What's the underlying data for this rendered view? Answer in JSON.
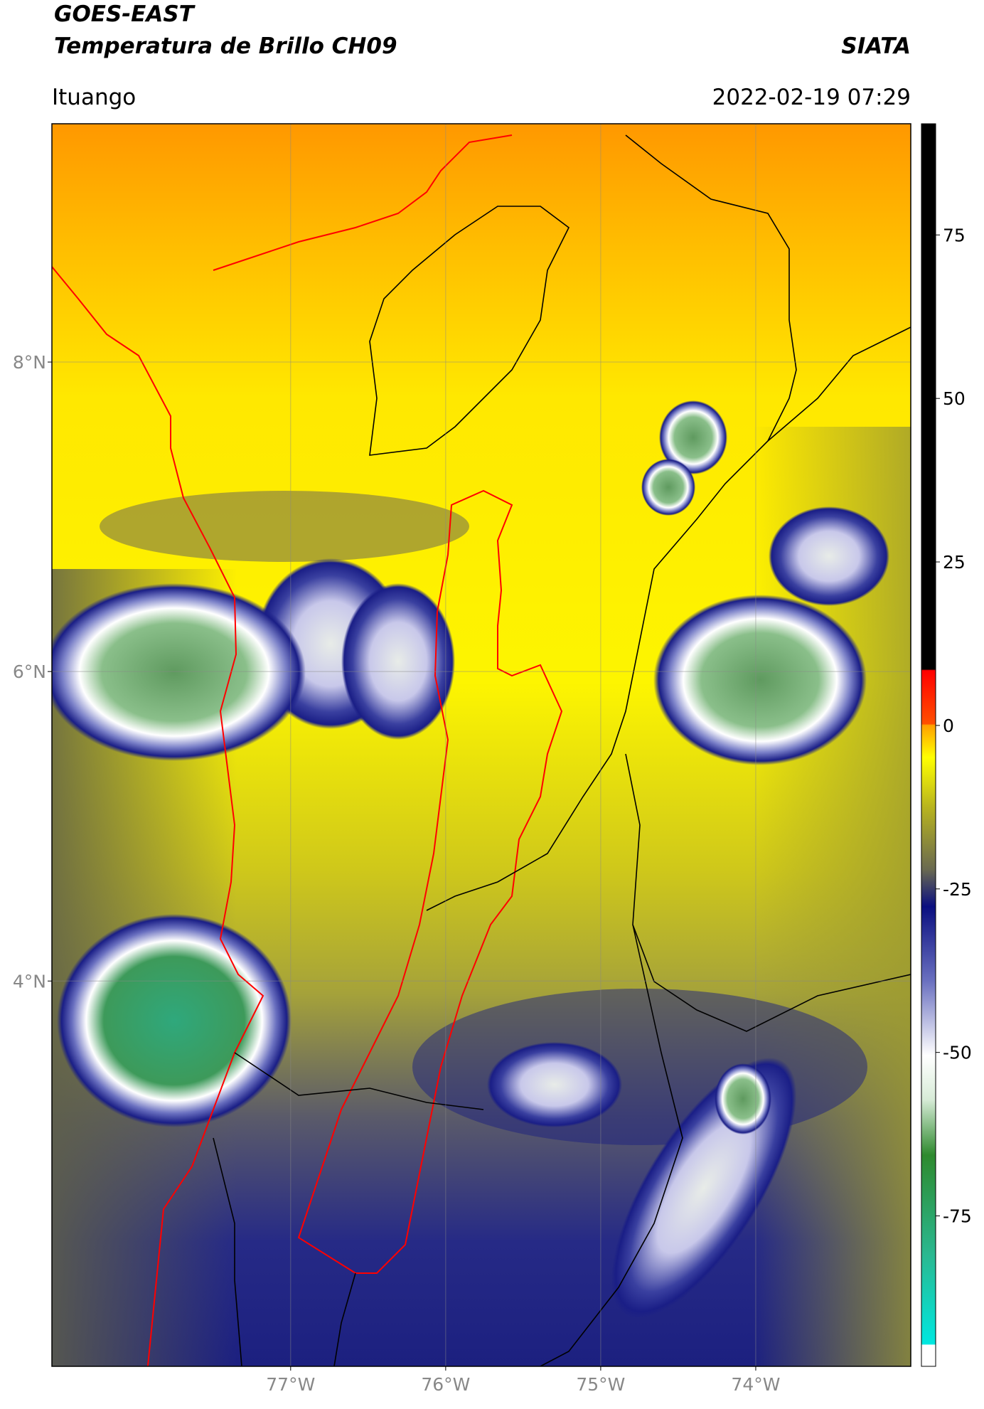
{
  "header": {
    "title": "GOES-EAST",
    "subtitle": "Temperatura de Brillo CH09",
    "source": "SIATA",
    "region": "Ituango",
    "datetime": "2022-02-19 07:29"
  },
  "map": {
    "xlim": [
      -78.54,
      -73.0
    ],
    "ylim": [
      1.51,
      9.54
    ],
    "xticks": [
      {
        "value": -77,
        "label": "77°W"
      },
      {
        "value": -76,
        "label": "76°W"
      },
      {
        "value": -75,
        "label": "75°W"
      },
      {
        "value": -74,
        "label": "74°W"
      }
    ],
    "yticks": [
      {
        "value": 8,
        "label": "8°N"
      },
      {
        "value": 6,
        "label": "6°N"
      },
      {
        "value": 4,
        "label": "4°N"
      }
    ],
    "grid": true
  },
  "colorbar": {
    "lim": [
      -98,
      92
    ],
    "ticks": [
      75,
      50,
      25,
      0,
      -25,
      -50,
      -75
    ]
  }
}
